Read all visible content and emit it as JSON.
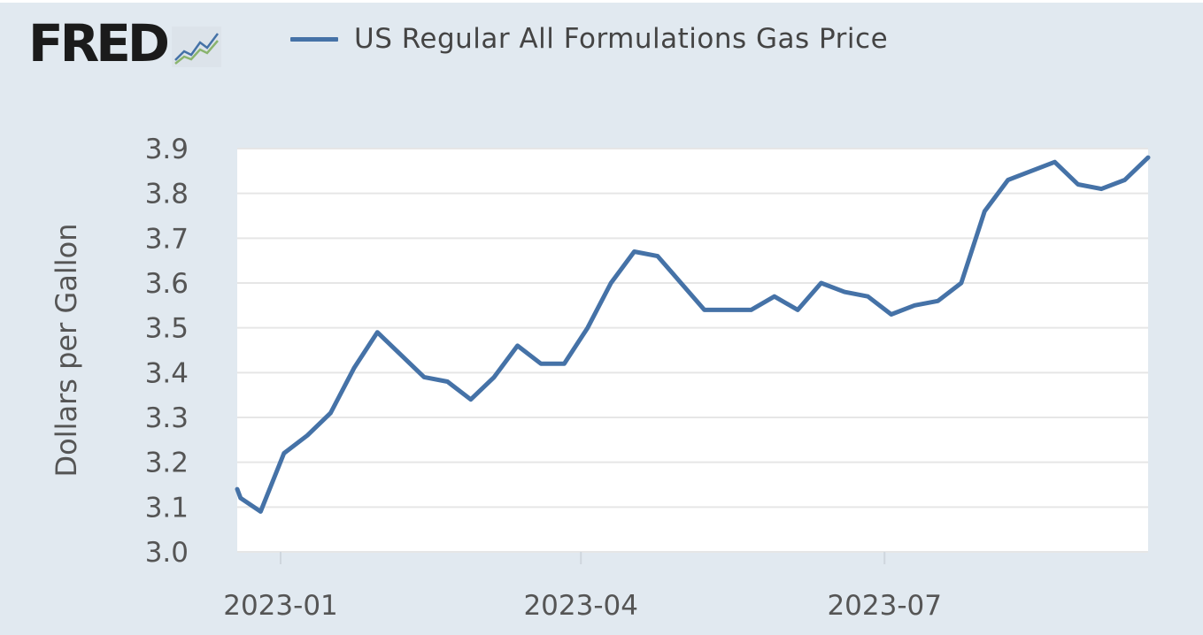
{
  "header": {
    "logo_text": "FRED",
    "logo_icon": "fred-chart-icon"
  },
  "colors": {
    "background": "#e1e9f0",
    "plot_background": "#ffffff",
    "series": "#4572a7",
    "grid": "#e6e6e6"
  },
  "chart_data": {
    "type": "line",
    "ylabel": "Dollars per Gallon",
    "xlabel": "",
    "ylim": [
      3.0,
      3.9
    ],
    "yticks": [
      "3.0",
      "3.1",
      "3.2",
      "3.3",
      "3.4",
      "3.5",
      "3.6",
      "3.7",
      "3.8",
      "3.9"
    ],
    "xticks": [
      {
        "label": "2023-01",
        "date": "2023-01-01"
      },
      {
        "label": "2023-04",
        "date": "2023-04-01"
      },
      {
        "label": "2023-07",
        "date": "2023-07-01"
      }
    ],
    "xlim": [
      "2022-12-19",
      "2023-09-18"
    ],
    "grid": true,
    "legend_position": "top",
    "series": [
      {
        "name": "US Regular All Formulations Gas Price",
        "x": [
          "2022-12-19",
          "2022-12-20",
          "2022-12-26",
          "2023-01-02",
          "2023-01-09",
          "2023-01-16",
          "2023-01-23",
          "2023-01-30",
          "2023-02-06",
          "2023-02-13",
          "2023-02-20",
          "2023-02-27",
          "2023-03-06",
          "2023-03-13",
          "2023-03-20",
          "2023-03-27",
          "2023-04-03",
          "2023-04-10",
          "2023-04-17",
          "2023-04-24",
          "2023-05-01",
          "2023-05-08",
          "2023-05-15",
          "2023-05-22",
          "2023-05-29",
          "2023-06-05",
          "2023-06-12",
          "2023-06-19",
          "2023-06-26",
          "2023-07-03",
          "2023-07-10",
          "2023-07-17",
          "2023-07-24",
          "2023-07-31",
          "2023-08-07",
          "2023-08-14",
          "2023-08-21",
          "2023-08-28",
          "2023-09-04",
          "2023-09-11",
          "2023-09-18"
        ],
        "values": [
          3.14,
          3.12,
          3.09,
          3.22,
          3.26,
          3.31,
          3.41,
          3.49,
          3.44,
          3.39,
          3.38,
          3.34,
          3.39,
          3.46,
          3.42,
          3.42,
          3.5,
          3.6,
          3.67,
          3.66,
          3.6,
          3.54,
          3.54,
          3.54,
          3.57,
          3.54,
          3.6,
          3.58,
          3.57,
          3.53,
          3.55,
          3.56,
          3.6,
          3.76,
          3.83,
          3.85,
          3.87,
          3.82,
          3.81,
          3.83,
          3.88
        ]
      }
    ]
  }
}
